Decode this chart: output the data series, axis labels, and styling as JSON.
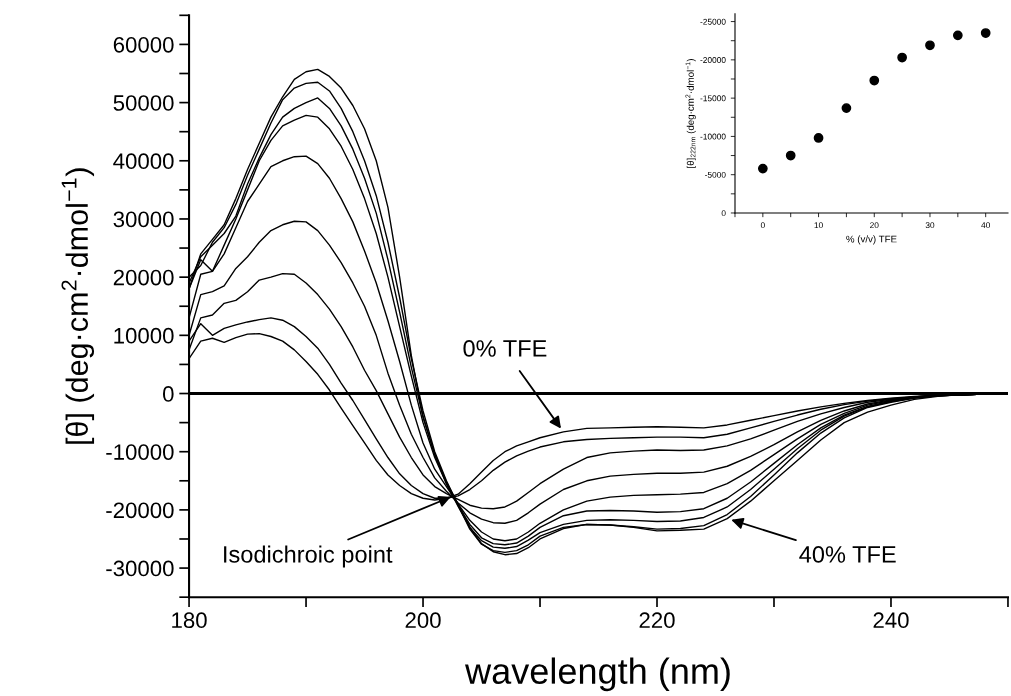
{
  "chart_data": [
    {
      "type": "line",
      "xlabel": "wavelength (nm)",
      "ylabel": "[θ] (deg·cm$^{2}$·dmol$^{−1}$)",
      "x": [
        180,
        181,
        182,
        183,
        184,
        185,
        186,
        187,
        188,
        189,
        190,
        191,
        192,
        193,
        194,
        195,
        196,
        197,
        198,
        199,
        200,
        201,
        202,
        203,
        204,
        205,
        206,
        207,
        208,
        209,
        210,
        212,
        214,
        216,
        218,
        220,
        222,
        224,
        226,
        228,
        230,
        232,
        234,
        236,
        238,
        240,
        242,
        244,
        246,
        248,
        250
      ],
      "xlim": [
        180,
        250
      ],
      "ylim": [
        -35000,
        65000
      ],
      "xticks": [
        180,
        {
          "value": 190,
          "label": null
        },
        200,
        {
          "value": 210,
          "label": null
        },
        220,
        {
          "value": 230,
          "label": null
        },
        240,
        {
          "value": 250,
          "label": null
        }
      ],
      "yticks": [
        {
          "value": -35000,
          "label": null
        },
        -30000,
        {
          "value": -25000,
          "label": null
        },
        -20000,
        {
          "value": -15000,
          "label": null
        },
        -10000,
        {
          "value": -5000,
          "label": null
        },
        0,
        {
          "value": 5000,
          "label": null
        },
        10000,
        {
          "value": 15000,
          "label": null
        },
        20000,
        {
          "value": 25000,
          "label": null
        },
        30000,
        {
          "value": 35000,
          "label": null
        },
        40000,
        {
          "value": 45000,
          "label": null
        },
        50000,
        {
          "value": 55000,
          "label": null
        },
        60000,
        {
          "value": 65000,
          "label": null
        }
      ],
      "marker": "none",
      "line_style": "solid",
      "grid": false,
      "legend": false,
      "ref_lines": [
        {
          "axis": "y",
          "value": 0,
          "label": null,
          "color": "#000000"
        }
      ],
      "annotations": [
        {
          "text": "0% TFE",
          "x": 212,
          "y": -6600
        },
        {
          "text": "Isodichroic point",
          "x": 202.7,
          "y": -17500
        },
        {
          "text": "40% TFE",
          "x": 226,
          "y": -21500
        }
      ],
      "series": [
        {
          "color": "#000000",
          "values": [
            6000,
            9000,
            9500,
            8800,
            9600,
            10200,
            10300,
            9800,
            9000,
            7500,
            5500,
            3300,
            600,
            -2500,
            -5500,
            -8500,
            -11500,
            -14000,
            -15800,
            -17200,
            -18000,
            -18300,
            -18000,
            -17300,
            -15500,
            -13500,
            -11500,
            -10000,
            -9000,
            -8300,
            -7600,
            -6600,
            -6000,
            -5900,
            -5800,
            -5700,
            -5800,
            -5900,
            -5400,
            -4600,
            -3800,
            -3000,
            -2300,
            -1700,
            -1200,
            -800,
            -500,
            -300,
            -200,
            -100,
            0
          ]
        },
        {
          "color": "#000000",
          "values": [
            9000,
            12000,
            10000,
            11200,
            11800,
            12300,
            12700,
            13000,
            12600,
            11500,
            9800,
            7800,
            5000,
            1800,
            -1200,
            -4500,
            -7800,
            -11000,
            -13800,
            -15800,
            -17200,
            -18000,
            -18000,
            -17600,
            -16500,
            -15000,
            -13200,
            -11800,
            -10700,
            -9900,
            -9200,
            -8300,
            -7900,
            -7700,
            -7600,
            -7500,
            -7500,
            -7600,
            -7000,
            -5900,
            -4800,
            -3700,
            -2700,
            -1900,
            -1300,
            -900,
            -600,
            -300,
            -200,
            -100,
            0
          ]
        },
        {
          "color": "#000000",
          "values": [
            7500,
            13000,
            13500,
            15500,
            16000,
            17500,
            19500,
            20000,
            20600,
            20500,
            19000,
            17000,
            14500,
            11500,
            8000,
            4000,
            500,
            -3500,
            -7500,
            -11000,
            -14000,
            -16000,
            -17200,
            -18200,
            -19200,
            -19700,
            -19800,
            -19500,
            -18500,
            -17000,
            -15500,
            -13000,
            -11000,
            -10200,
            -9900,
            -9700,
            -9800,
            -9700,
            -9000,
            -7800,
            -6300,
            -4800,
            -3500,
            -2400,
            -1500,
            -1000,
            -600,
            -300,
            -200,
            -100,
            0
          ]
        },
        {
          "color": "#000000",
          "values": [
            10000,
            17000,
            17500,
            18500,
            21500,
            23500,
            26000,
            28000,
            29000,
            29600,
            29500,
            28000,
            25500,
            22500,
            19000,
            15000,
            10000,
            3500,
            -2000,
            -7000,
            -11000,
            -14500,
            -16800,
            -18800,
            -20500,
            -21600,
            -22200,
            -22300,
            -21800,
            -20500,
            -19000,
            -16500,
            -15000,
            -14200,
            -13900,
            -13700,
            -13700,
            -13500,
            -12500,
            -10800,
            -8800,
            -6600,
            -4600,
            -3000,
            -1800,
            -1100,
            -600,
            -300,
            -200,
            -100,
            0
          ]
        },
        {
          "color": "#000000",
          "values": [
            13000,
            20500,
            21000,
            24000,
            28500,
            33000,
            36000,
            39000,
            40000,
            40700,
            40800,
            39500,
            37000,
            33500,
            29500,
            24500,
            19000,
            12500,
            5500,
            -2000,
            -8500,
            -13000,
            -16000,
            -19000,
            -21800,
            -23800,
            -25000,
            -25300,
            -25000,
            -23800,
            -22300,
            -20000,
            -18500,
            -17800,
            -17500,
            -17400,
            -17300,
            -17000,
            -15500,
            -13200,
            -10500,
            -7800,
            -5300,
            -3400,
            -2000,
            -1200,
            -700,
            -300,
            -200,
            -100,
            0
          ]
        },
        {
          "color": "#000000",
          "values": [
            18000,
            23000,
            21000,
            25500,
            30000,
            35000,
            40000,
            43500,
            46000,
            47000,
            47800,
            47500,
            45500,
            42500,
            38500,
            33500,
            27500,
            20000,
            11500,
            3000,
            -5000,
            -11000,
            -15500,
            -19200,
            -22500,
            -24800,
            -25800,
            -26000,
            -25700,
            -24500,
            -23000,
            -21000,
            -20200,
            -20100,
            -20200,
            -20400,
            -20300,
            -19800,
            -18000,
            -15200,
            -12000,
            -8800,
            -5900,
            -3700,
            -2200,
            -1300,
            -700,
            -400,
            -200,
            -100,
            0
          ]
        },
        {
          "color": "#000000",
          "values": [
            19000,
            23500,
            25500,
            27500,
            30500,
            36000,
            40500,
            44500,
            47500,
            49000,
            50000,
            50800,
            49000,
            46000,
            42000,
            37000,
            31000,
            23000,
            14000,
            4500,
            -4000,
            -10500,
            -15500,
            -19400,
            -23000,
            -25300,
            -26400,
            -26600,
            -26300,
            -25200,
            -23900,
            -22500,
            -21800,
            -21700,
            -21800,
            -22000,
            -21900,
            -21300,
            -19500,
            -16500,
            -13000,
            -9500,
            -6300,
            -3900,
            -2300,
            -1400,
            -800,
            -400,
            -200,
            -100,
            0
          ]
        },
        {
          "color": "#000000",
          "values": [
            20000,
            22000,
            26000,
            28500,
            32500,
            37500,
            42000,
            46500,
            50500,
            52500,
            53300,
            53500,
            52000,
            49000,
            45000,
            40000,
            34000,
            26000,
            16500,
            6000,
            -3000,
            -10000,
            -15000,
            -19200,
            -23300,
            -25900,
            -27000,
            -27300,
            -27000,
            -26000,
            -24500,
            -23000,
            -22500,
            -22600,
            -22900,
            -23300,
            -23200,
            -22700,
            -20800,
            -17700,
            -14000,
            -10200,
            -6800,
            -4200,
            -2400,
            -1500,
            -800,
            -400,
            -200,
            -100,
            0
          ]
        },
        {
          "color": "#000000",
          "values": [
            18000,
            24000,
            26500,
            29000,
            33500,
            38500,
            43000,
            47500,
            51000,
            54000,
            55300,
            55700,
            54500,
            52500,
            49500,
            45500,
            40000,
            32000,
            20000,
            6500,
            -4000,
            -10500,
            -15200,
            -19000,
            -23000,
            -25800,
            -27200,
            -27700,
            -27500,
            -26500,
            -25000,
            -23200,
            -22500,
            -22600,
            -23000,
            -23600,
            -23500,
            -23300,
            -21500,
            -18500,
            -15000,
            -11500,
            -8000,
            -5000,
            -3200,
            -2000,
            -1000,
            -500,
            -200,
            -100,
            0
          ]
        }
      ]
    },
    {
      "type": "scatter",
      "xlabel": "% (v/v) TFE",
      "ylabel": "[θ]$_{222nm}$ (deg·cm$^{2}$·dmol$^{−1}$)",
      "x": [
        0,
        5,
        10,
        15,
        20,
        25,
        30,
        35,
        40
      ],
      "xlim": [
        -5,
        44
      ],
      "ylim": [
        0,
        -26000
      ],
      "xticks": [
        {
          "value": -5,
          "label": null
        },
        0,
        {
          "value": 5,
          "label": null
        },
        10,
        {
          "value": 15,
          "label": null
        },
        20,
        {
          "value": 25,
          "label": null
        },
        30,
        {
          "value": 35,
          "label": null
        },
        40
      ],
      "yticks": [
        0,
        {
          "value": -2500,
          "label": null
        },
        -5000,
        {
          "value": -7500,
          "label": null
        },
        -10000,
        {
          "value": -12500,
          "label": null
        },
        -15000,
        {
          "value": -17500,
          "label": null
        },
        -20000,
        {
          "value": -22500,
          "label": null
        },
        -25000
      ],
      "marker": "circle",
      "grid": false,
      "legend": false,
      "series": [
        {
          "color": "#000000",
          "values": [
            -5800,
            -7500,
            -9800,
            -13700,
            -17300,
            -20300,
            -21900,
            -23200,
            -23500
          ]
        }
      ]
    }
  ]
}
